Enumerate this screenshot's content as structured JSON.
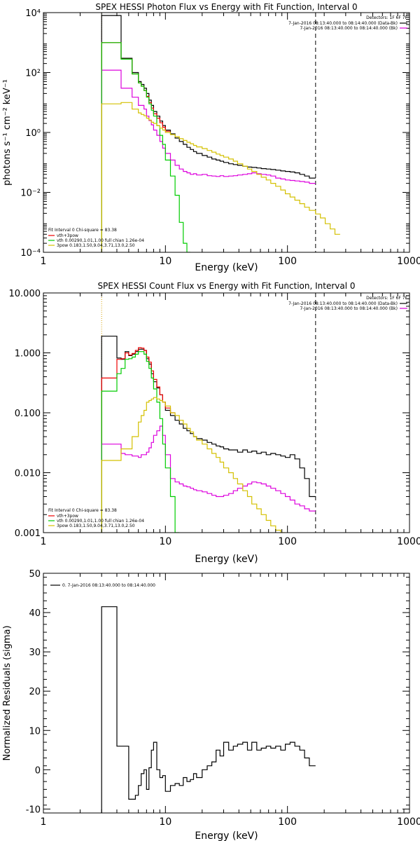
{
  "chart_data": [
    {
      "type": "line",
      "title": "SPEX HESSI Photon Flux vs Energy with Fit Function, Interval 0",
      "xlabel": "Energy (keV)",
      "ylabel": "photons s⁻¹ cm⁻² keV⁻¹",
      "xscale": "log",
      "yscale": "log",
      "xlim": [
        1,
        1000
      ],
      "ylim": [
        0.0001,
        10000
      ],
      "x_ticks": [
        1,
        10,
        100,
        1000
      ],
      "x_tick_labels": [
        "1",
        "10",
        "100",
        "1000"
      ],
      "y_ticks": [
        0.0001,
        0.01,
        1,
        100,
        10000
      ],
      "y_tick_labels": [
        "10⁻⁴",
        "10⁻²",
        "10⁰",
        "10²",
        "10⁴"
      ],
      "grid": false,
      "legend_top_right": {
        "detectors": "Detectors: 1F 6F 7F",
        "entries": [
          {
            "label": "7-Jan-2016 08:13:40.000 to 08:14:40.000 (Data-Bk)",
            "color": "#000000"
          },
          {
            "label": "7-Jan-2016 08:13:40.000 to 08:14:40.000 (Bk)",
            "color": "#dd00dd"
          }
        ]
      },
      "legend_bottom_left": {
        "header": "Fit Interval 0   Chi-square = 83.38",
        "entries": [
          {
            "label": "vth+3pow",
            "color": "#ee0000"
          },
          {
            "label": "vth 0.00290,1.01,1.00  full chian 1.26e-04",
            "color": "#00cc00"
          },
          {
            "label": "3pow 0.183,1.50,9.04,3.71,13.0,2.50",
            "color": "#d4c000"
          }
        ]
      },
      "vlines": [
        {
          "x": 3.0,
          "color": "#d4a000",
          "style": "dotted"
        },
        {
          "x": 170,
          "color": "#000000",
          "style": "dashed"
        }
      ],
      "bin_edges": [
        3.0,
        3.33,
        3.67,
        4.0,
        4.33,
        4.67,
        5.0,
        5.33,
        5.67,
        6.0,
        6.33,
        6.67,
        7.0,
        7.33,
        7.67,
        8.0,
        8.5,
        9.0,
        9.5,
        10.0,
        11,
        12,
        13,
        14,
        15,
        16,
        17,
        18,
        20,
        22,
        24,
        26,
        28,
        30,
        33,
        36,
        39,
        43,
        47,
        51,
        56,
        61,
        67,
        73,
        80,
        88,
        96,
        105,
        115,
        126,
        138,
        151,
        170,
        186,
        204,
        224,
        245,
        270
      ],
      "series": [
        {
          "name": "Data-Bk",
          "color": "#000000",
          "values": [
            8000,
            8000,
            8000,
            8000,
            300,
            300,
            300,
            100,
            100,
            50,
            40,
            30,
            20,
            12,
            8,
            5,
            3.5,
            2.4,
            1.7,
            1.2,
            0.9,
            0.65,
            0.5,
            0.4,
            0.32,
            0.27,
            0.23,
            0.2,
            0.17,
            0.15,
            0.13,
            0.12,
            0.11,
            0.1,
            0.09,
            0.085,
            0.08,
            0.075,
            0.07,
            0.068,
            0.065,
            0.062,
            0.06,
            0.058,
            0.055,
            0.052,
            0.05,
            0.048,
            0.045,
            0.04,
            0.035,
            0.03,
            null,
            null,
            null,
            null,
            null
          ]
        },
        {
          "name": "vth+3pow",
          "color": "#ee0000",
          "values": [
            1000,
            1000,
            1000,
            1000,
            280,
            280,
            280,
            90,
            90,
            45,
            35,
            25,
            16,
            10,
            6.5,
            4.2,
            3.0,
            2.1,
            1.5,
            1.1,
            null,
            null,
            null,
            null,
            null,
            null,
            null,
            null,
            null,
            null,
            null,
            null,
            null,
            null,
            null,
            null,
            null,
            null,
            null,
            null,
            null,
            null,
            null,
            null,
            null,
            null,
            null,
            null,
            null,
            null,
            null,
            null,
            null,
            null,
            null,
            null,
            null
          ]
        },
        {
          "name": "Bk",
          "color": "#dd00dd",
          "values": [
            120,
            120,
            120,
            120,
            30,
            30,
            30,
            15,
            15,
            8,
            8,
            6,
            3.5,
            2.5,
            1.8,
            1.2,
            0.8,
            0.5,
            0.3,
            0.2,
            0.12,
            0.08,
            0.06,
            0.05,
            0.045,
            0.04,
            0.042,
            0.038,
            0.04,
            0.036,
            0.035,
            0.034,
            0.036,
            0.034,
            0.035,
            0.036,
            0.038,
            0.04,
            0.042,
            0.045,
            0.042,
            0.04,
            0.038,
            0.035,
            0.03,
            0.028,
            0.026,
            0.025,
            0.024,
            0.023,
            0.022,
            0.02,
            null,
            null,
            null,
            null,
            null
          ]
        },
        {
          "name": "vth",
          "color": "#00cc00",
          "values": [
            1000,
            1000,
            1000,
            1000,
            280,
            280,
            280,
            90,
            90,
            45,
            35,
            25,
            15,
            9,
            5.5,
            3.5,
            1.7,
            0.8,
            0.4,
            0.12,
            0.035,
            0.008,
            0.001,
            0.0002,
            0.0001,
            null,
            null,
            null,
            null,
            null,
            null,
            null,
            null,
            null,
            null,
            null,
            null,
            null,
            null,
            null,
            null,
            null,
            null,
            null,
            null,
            null,
            null,
            null,
            null,
            null,
            null,
            null,
            null,
            null,
            null,
            null,
            null
          ]
        },
        {
          "name": "3pow",
          "color": "#d4c000",
          "values": [
            9,
            9,
            9,
            9,
            10,
            10,
            10,
            6,
            6,
            4.5,
            4,
            3.6,
            3,
            2.6,
            2.2,
            2,
            1.7,
            1.4,
            1.2,
            1.0,
            0.85,
            0.72,
            0.62,
            0.54,
            0.47,
            0.42,
            0.37,
            0.33,
            0.29,
            0.25,
            0.22,
            0.19,
            0.17,
            0.15,
            0.13,
            0.11,
            0.09,
            0.075,
            0.06,
            0.05,
            0.04,
            0.032,
            0.026,
            0.02,
            0.016,
            0.012,
            0.009,
            0.007,
            0.0055,
            0.0042,
            0.0032,
            0.0025,
            0.0019,
            0.0014,
            0.0009,
            0.0006,
            0.0004
          ]
        }
      ]
    },
    {
      "type": "line",
      "title": "SPEX HESSI Count Flux vs Energy with Fit Function, Interval 0",
      "xlabel": "Energy (keV)",
      "ylabel": "",
      "xscale": "log",
      "yscale": "log",
      "xlim": [
        1,
        1000
      ],
      "ylim": [
        0.001,
        10
      ],
      "x_ticks": [
        1,
        10,
        100,
        1000
      ],
      "x_tick_labels": [
        "1",
        "10",
        "100",
        "1000"
      ],
      "y_ticks": [
        0.001,
        0.01,
        0.1,
        1,
        10
      ],
      "y_tick_labels": [
        "0.001",
        "0.010",
        "0.100",
        "1.000",
        "10.000"
      ],
      "grid": false,
      "legend_top_right": {
        "detectors": "Detectors: 1F 6F 7F",
        "entries": [
          {
            "label": "7-Jan-2016 08:13:40.000 to 08:14:40.000 (Data-Bk)",
            "color": "#000000"
          },
          {
            "label": "7-Jan-2016 08:13:40.000 to 08:14:40.000 (Bk)",
            "color": "#dd00dd"
          }
        ]
      },
      "legend_bottom_left": {
        "header": "Fit Interval 0   Chi-square = 83.38",
        "entries": [
          {
            "label": "vth+3pow",
            "color": "#ee0000"
          },
          {
            "label": "vth 0.00290,1.01,1.00  full chian 1.26e-04",
            "color": "#00cc00"
          },
          {
            "label": "3pow 0.183,1.50,9.04,3.71,13.0,2.50",
            "color": "#d4c000"
          }
        ]
      },
      "vlines": [
        {
          "x": 3.0,
          "color": "#d4a000",
          "style": "dotted"
        },
        {
          "x": 170,
          "color": "#000000",
          "style": "dashed"
        }
      ],
      "bin_edges": [
        3.0,
        3.33,
        3.67,
        4.0,
        4.33,
        4.67,
        5.0,
        5.33,
        5.67,
        6.0,
        6.33,
        6.67,
        7.0,
        7.33,
        7.67,
        8.0,
        8.5,
        9.0,
        9.5,
        10.0,
        11,
        12,
        13,
        14,
        15,
        16,
        17,
        18,
        20,
        22,
        24,
        26,
        28,
        30,
        33,
        36,
        39,
        43,
        47,
        51,
        56,
        61,
        67,
        73,
        80,
        88,
        96,
        105,
        115,
        126,
        138,
        151,
        170
      ],
      "series": [
        {
          "name": "Data-Bk",
          "color": "#000000",
          "values": [
            1.9,
            1.9,
            1.9,
            0.82,
            0.78,
            1.05,
            0.9,
            0.95,
            1.05,
            1.15,
            1.15,
            1.1,
            0.8,
            0.65,
            0.45,
            0.33,
            0.26,
            0.2,
            0.15,
            0.11,
            0.09,
            0.075,
            0.065,
            0.055,
            0.05,
            0.045,
            0.04,
            0.037,
            0.035,
            0.032,
            0.03,
            0.028,
            0.027,
            0.025,
            0.024,
            0.024,
            0.022,
            0.024,
            0.022,
            0.023,
            0.021,
            0.022,
            0.02,
            0.021,
            0.02,
            0.019,
            0.018,
            0.02,
            0.017,
            0.012,
            0.008,
            0.004
          ]
        },
        {
          "name": "vth+3pow",
          "color": "#ee0000",
          "values": [
            0.38,
            0.38,
            0.38,
            0.78,
            0.8,
            1.0,
            0.92,
            0.98,
            1.1,
            1.22,
            1.2,
            1.1,
            0.85,
            0.7,
            0.5,
            0.36,
            0.27,
            0.2,
            0.15,
            0.12,
            0.1,
            null,
            null,
            null,
            null,
            null,
            null,
            null,
            null,
            null,
            null,
            null,
            null,
            null,
            null,
            null,
            null,
            null,
            null,
            null,
            null,
            null,
            null,
            null,
            null,
            null,
            null,
            null,
            null,
            null,
            null,
            null
          ]
        },
        {
          "name": "Bk",
          "color": "#dd00dd",
          "values": [
            0.03,
            0.03,
            0.03,
            0.03,
            0.021,
            0.02,
            0.02,
            0.019,
            0.019,
            0.018,
            0.02,
            0.02,
            0.022,
            0.026,
            0.032,
            0.042,
            0.05,
            0.06,
            0.042,
            0.02,
            0.008,
            0.007,
            0.0065,
            0.006,
            0.0058,
            0.0055,
            0.0052,
            0.005,
            0.0048,
            0.0045,
            0.0042,
            0.004,
            0.004,
            0.0042,
            0.0045,
            0.005,
            0.0055,
            0.006,
            0.0065,
            0.007,
            0.0068,
            0.0065,
            0.006,
            0.0055,
            0.005,
            0.0045,
            0.004,
            0.0035,
            0.003,
            0.0028,
            0.0025,
            0.0023
          ]
        },
        {
          "name": "vth",
          "color": "#00cc00",
          "values": [
            0.23,
            0.23,
            0.23,
            0.45,
            0.55,
            0.78,
            0.8,
            0.85,
            0.95,
            1.05,
            1.05,
            0.95,
            0.72,
            0.55,
            0.38,
            0.25,
            0.15,
            0.08,
            0.03,
            0.012,
            0.004,
            0.001,
            null,
            null,
            null,
            null,
            null,
            null,
            null,
            null,
            null,
            null,
            null,
            null,
            null,
            null,
            null,
            null,
            null,
            null,
            null,
            null,
            null,
            null,
            null,
            null,
            null,
            null,
            null,
            null,
            null,
            null
          ]
        },
        {
          "name": "3pow",
          "color": "#d4c000",
          "values": [
            0.016,
            0.016,
            0.016,
            0.016,
            0.025,
            0.025,
            0.025,
            0.04,
            0.04,
            0.07,
            0.09,
            0.11,
            0.15,
            0.16,
            0.17,
            0.18,
            0.17,
            0.16,
            0.15,
            0.13,
            0.1,
            0.09,
            0.075,
            0.065,
            0.055,
            0.048,
            0.04,
            0.035,
            0.03,
            0.025,
            0.021,
            0.018,
            0.015,
            0.012,
            0.01,
            0.008,
            0.0065,
            0.005,
            0.004,
            0.003,
            0.0025,
            0.002,
            0.0016,
            0.0013,
            0.0011,
            0.001,
            null,
            null,
            null,
            null,
            null,
            null
          ]
        }
      ]
    },
    {
      "type": "line",
      "title": "",
      "xlabel": "Energy (keV)",
      "ylabel": "Normalized Residuals (sigma)",
      "xscale": "log",
      "yscale": "linear",
      "xlim": [
        1,
        1000
      ],
      "ylim": [
        -11,
        50
      ],
      "x_ticks": [
        1,
        10,
        100,
        1000
      ],
      "x_tick_labels": [
        "1",
        "10",
        "100",
        "1000"
      ],
      "y_ticks": [
        -10,
        0,
        10,
        20,
        30,
        40,
        50
      ],
      "y_tick_labels": [
        "-10",
        "0",
        "10",
        "20",
        "30",
        "40",
        "50"
      ],
      "grid": false,
      "legend_top_left": {
        "entries": [
          {
            "label": "0.  7-Jan-2016 08:13:40.000 to 08:14:40.000",
            "color": "#000000"
          }
        ]
      },
      "bin_edges": [
        3.0,
        3.33,
        3.67,
        4.0,
        4.33,
        4.67,
        5.0,
        5.33,
        5.67,
        6.0,
        6.33,
        6.67,
        7.0,
        7.33,
        7.67,
        8.0,
        8.5,
        9.0,
        9.5,
        10.0,
        11,
        12,
        13,
        14,
        15,
        16,
        17,
        18,
        20,
        22,
        24,
        26,
        28,
        30,
        33,
        36,
        39,
        43,
        47,
        51,
        56,
        61,
        67,
        73,
        80,
        88,
        96,
        105,
        115,
        126,
        138,
        151,
        170
      ],
      "series": [
        {
          "name": "residuals",
          "color": "#000000",
          "values": [
            41.5,
            41.5,
            41.5,
            6,
            6,
            6,
            -7.5,
            -7.5,
            -6.5,
            -4,
            -1,
            0,
            -5,
            0.5,
            5,
            7,
            0,
            -2,
            -1.5,
            -5.5,
            -4,
            -3.5,
            -4,
            -2,
            -3,
            -2.5,
            -1,
            -2,
            0,
            1,
            2,
            5,
            3.5,
            7,
            5,
            6,
            6.5,
            7,
            5,
            7,
            5,
            5.5,
            6,
            5.5,
            6,
            5,
            6.5,
            7,
            6,
            5,
            3,
            1
          ]
        }
      ]
    }
  ]
}
